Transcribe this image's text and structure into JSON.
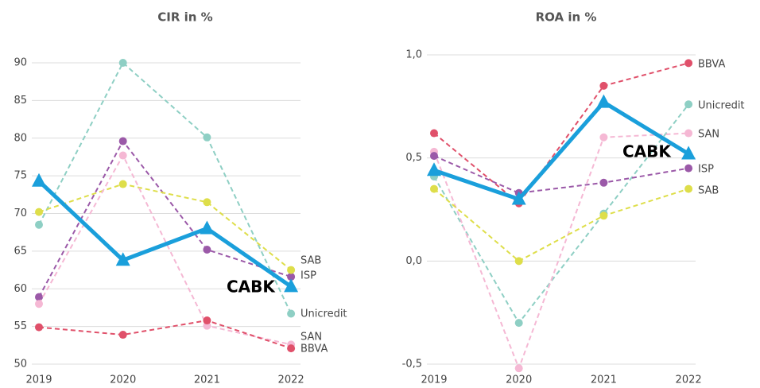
{
  "chart_data": [
    {
      "type": "line",
      "title": "CIR in %",
      "categories": [
        "2019",
        "2020",
        "2021",
        "2022"
      ],
      "ylim": [
        50,
        90
      ],
      "yticks": [
        50,
        55,
        60,
        65,
        70,
        75,
        80,
        85,
        90
      ],
      "grid": true,
      "series": [
        {
          "name": "Unicredit",
          "color": "#8ecfc4",
          "dashed": true,
          "marker": "circle",
          "values": [
            68.5,
            90,
            80.1,
            56.7
          ]
        },
        {
          "name": "ISP",
          "color": "#9b59a8",
          "dashed": true,
          "marker": "circle",
          "values": [
            58.9,
            79.6,
            65.2,
            61.6
          ]
        },
        {
          "name": "SAB",
          "color": "#dede4a",
          "dashed": true,
          "marker": "circle",
          "values": [
            70.2,
            73.9,
            71.5,
            62.5
          ]
        },
        {
          "name": "SAN",
          "color": "#f5b8d4",
          "dashed": true,
          "marker": "circle",
          "values": [
            58,
            77.7,
            55.1,
            52.6
          ]
        },
        {
          "name": "BBVA",
          "color": "#e0506a",
          "dashed": true,
          "marker": "circle",
          "values": [
            54.9,
            53.9,
            55.8,
            52.1
          ]
        },
        {
          "name": "CABK",
          "color": "#1a9fdb",
          "dashed": false,
          "marker": "triangle",
          "values": [
            74.3,
            63.8,
            68,
            60.3
          ]
        }
      ]
    },
    {
      "type": "line",
      "title": "ROA in %",
      "categories": [
        "2019",
        "2020",
        "2021",
        "2022"
      ],
      "ylim": [
        -0.5,
        1.0
      ],
      "yticks": [
        {
          "value": -0.5,
          "label": "-0,5"
        },
        {
          "value": 0,
          "label": "0,0"
        },
        {
          "value": 0.5,
          "label": "0,5"
        },
        {
          "value": 1.0,
          "label": "1,0"
        }
      ],
      "grid": true,
      "series": [
        {
          "name": "BBVA",
          "color": "#e0506a",
          "dashed": true,
          "marker": "circle",
          "values": [
            0.62,
            0.28,
            0.85,
            0.96
          ]
        },
        {
          "name": "Unicredit",
          "color": "#8ecfc4",
          "dashed": true,
          "marker": "circle",
          "values": [
            0.41,
            -0.3,
            0.23,
            0.76
          ]
        },
        {
          "name": "SAN",
          "color": "#f5b8d4",
          "dashed": true,
          "marker": "circle",
          "values": [
            0.53,
            -0.52,
            0.6,
            0.62
          ]
        },
        {
          "name": "ISP",
          "color": "#9b59a8",
          "dashed": true,
          "marker": "circle",
          "values": [
            0.51,
            0.33,
            0.38,
            0.45
          ]
        },
        {
          "name": "SAB",
          "color": "#dede4a",
          "dashed": true,
          "marker": "circle",
          "values": [
            0.35,
            0,
            0.22,
            0.35
          ]
        },
        {
          "name": "CABK",
          "color": "#1a9fdb",
          "dashed": false,
          "marker": "triangle",
          "values": [
            0.44,
            0.3,
            0.77,
            0.52
          ]
        }
      ]
    }
  ]
}
